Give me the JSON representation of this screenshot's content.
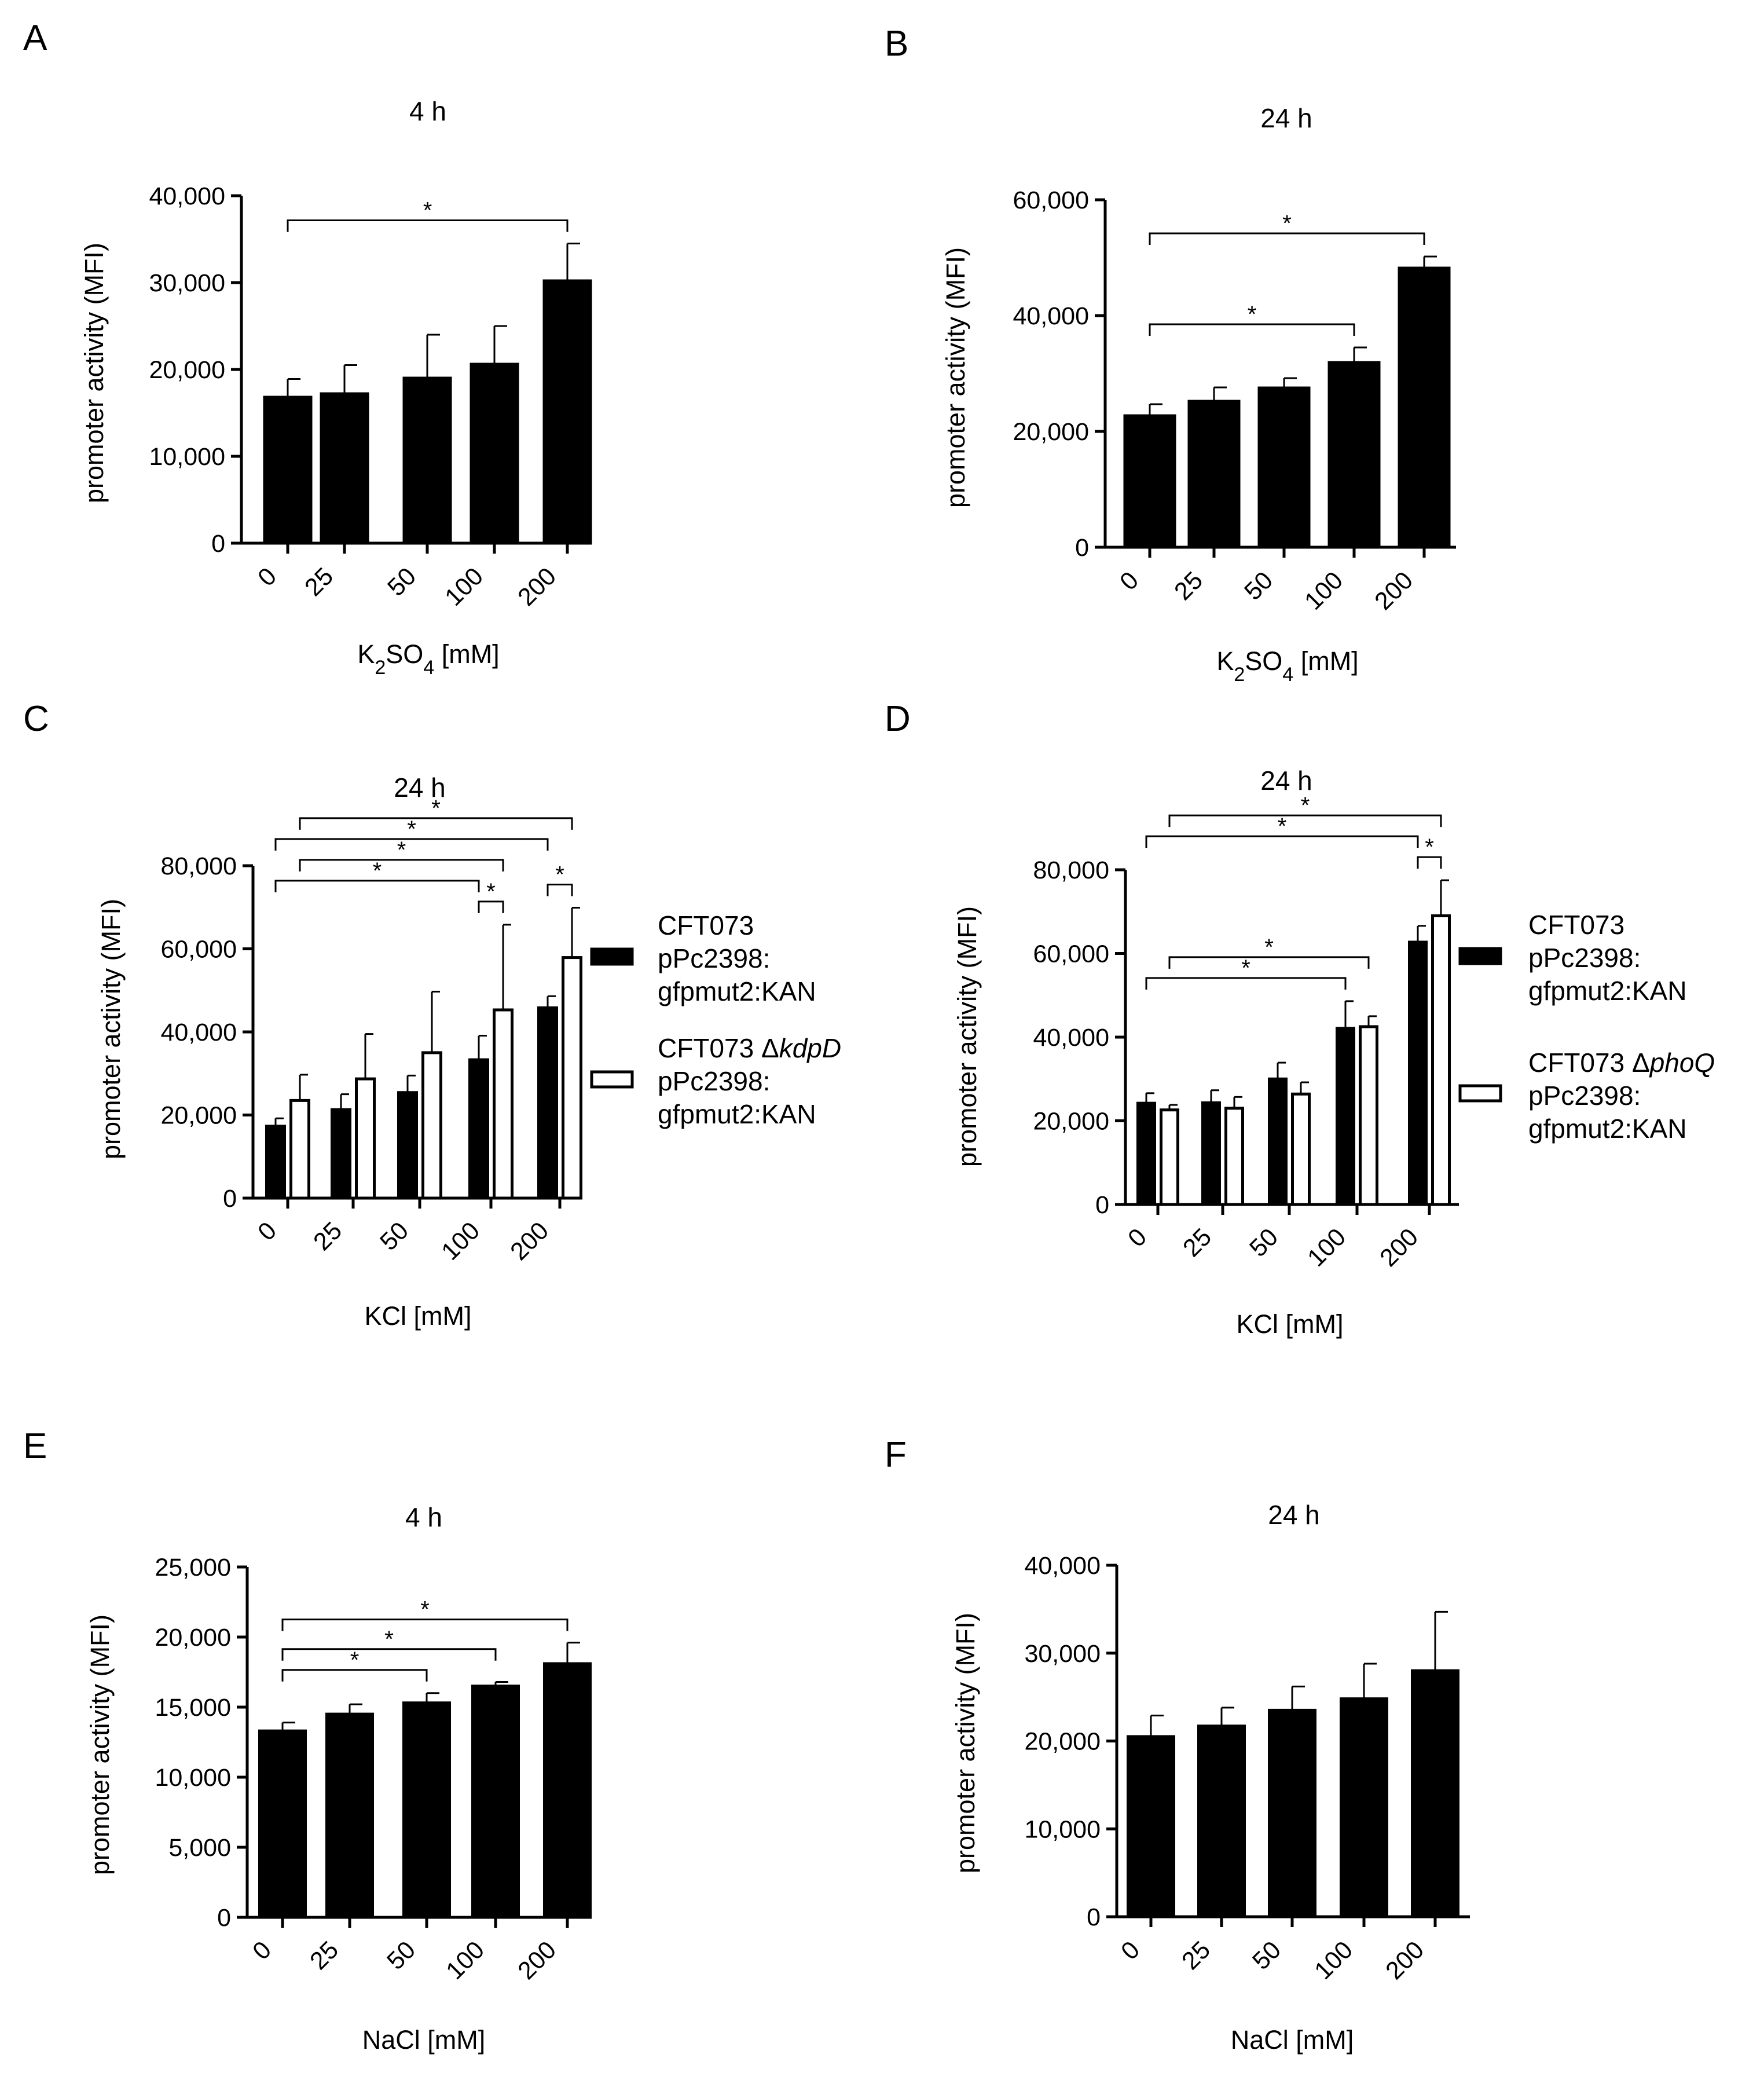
{
  "chart_data": [
    {
      "panel": "A",
      "type": "bar",
      "title": "4 h",
      "ylabel": "promoter activity (MFI)",
      "xlabel": "K2SO4 [mM]",
      "xlabel_parts": [
        {
          "t": "K"
        },
        {
          "t": "2",
          "sub": true
        },
        {
          "t": "SO"
        },
        {
          "t": "4",
          "sub": true
        },
        {
          "t": " [mM]"
        }
      ],
      "categories": [
        "0",
        "25",
        "50",
        "100",
        "200"
      ],
      "ylim": [
        0,
        40000
      ],
      "yticks": [
        0,
        10000,
        20000,
        30000,
        40000
      ],
      "ytick_labels": [
        "0",
        "10,000",
        "20,000",
        "30,000",
        "40,000"
      ],
      "series": [
        {
          "name": "",
          "fill": "#000000",
          "values": [
            16800,
            17200,
            19000,
            20600,
            30200
          ],
          "errors": [
            2100,
            3300,
            5000,
            4400,
            4300
          ]
        }
      ],
      "significance": [
        {
          "from": 0,
          "to": 4,
          "label": "*"
        }
      ]
    },
    {
      "panel": "B",
      "type": "bar",
      "title": "24 h",
      "ylabel": "promoter activity (MFI)",
      "xlabel": "K2SO4 [mM]",
      "xlabel_parts": [
        {
          "t": "K"
        },
        {
          "t": "2",
          "sub": true
        },
        {
          "t": "SO"
        },
        {
          "t": "4",
          "sub": true
        },
        {
          "t": " [mM]"
        }
      ],
      "categories": [
        "0",
        "25",
        "50",
        "100",
        "200"
      ],
      "ylim": [
        0,
        60000
      ],
      "yticks": [
        0,
        20000,
        40000,
        60000
      ],
      "ytick_labels": [
        "0",
        "20,000",
        "40,000",
        "60,000"
      ],
      "series": [
        {
          "name": "",
          "fill": "#000000",
          "values": [
            22700,
            25200,
            27500,
            31900,
            48200
          ],
          "errors": [
            2000,
            2400,
            1700,
            2600,
            2000
          ]
        }
      ],
      "significance": [
        {
          "from": 0,
          "to": 3,
          "label": "*"
        },
        {
          "from": 0,
          "to": 4,
          "label": "*"
        }
      ]
    },
    {
      "panel": "C",
      "type": "bar",
      "title": "24 h",
      "ylabel": "promoter activity (MFI)",
      "xlabel": "KCl [mM]",
      "xlabel_parts": [
        {
          "t": "KCl [mM]"
        }
      ],
      "categories": [
        "0",
        "25",
        "50",
        "100",
        "200"
      ],
      "ylim": [
        0,
        80000
      ],
      "yticks": [
        0,
        20000,
        40000,
        60000,
        80000
      ],
      "ytick_labels": [
        "0",
        "20,000",
        "40,000",
        "60,000",
        "80,000"
      ],
      "series": [
        {
          "name": "CFT073 pPc2398: gfpmut2:KAN",
          "fill": "#000000",
          "values": [
            17300,
            21300,
            25400,
            33300,
            45800
          ],
          "errors": [
            1900,
            3700,
            4100,
            5800,
            2800
          ]
        },
        {
          "name": "CFT073 ΔkdpD pPc2398: gfpmut2:KAN",
          "fill": "#ffffff",
          "values": [
            23500,
            28700,
            35000,
            45300,
            57900
          ],
          "errors": [
            6200,
            10800,
            14700,
            20500,
            12000
          ]
        }
      ],
      "legend": [
        {
          "lines": [
            [
              {
                "t": "CFT073"
              }
            ],
            [
              {
                "t": "pPc2398:"
              }
            ],
            [
              {
                "t": "gfpmut2:KAN"
              }
            ]
          ]
        },
        {
          "lines": [
            [
              {
                "t": "CFT073 Δ"
              },
              {
                "t": "kdpD",
                "i": true
              }
            ],
            [
              {
                "t": "pPc2398:"
              }
            ],
            [
              {
                "t": "gfpmut2:KAN"
              }
            ]
          ]
        }
      ],
      "significance": [
        {
          "from": [
            3,
            0
          ],
          "to": [
            3,
            1
          ],
          "label": "*"
        },
        {
          "from": [
            4,
            0
          ],
          "to": [
            4,
            1
          ],
          "label": "*"
        },
        {
          "from": [
            0,
            0
          ],
          "to": [
            3,
            0
          ],
          "label": "*"
        },
        {
          "from": [
            0,
            1
          ],
          "to": [
            3,
            1
          ],
          "label": "*"
        },
        {
          "from": [
            0,
            0
          ],
          "to": [
            4,
            0
          ],
          "label": "*"
        },
        {
          "from": [
            0,
            1
          ],
          "to": [
            4,
            1
          ],
          "label": "*"
        }
      ]
    },
    {
      "panel": "D",
      "type": "bar",
      "title": "24 h",
      "ylabel": "promoter activity (MFI)",
      "xlabel": "KCl [mM]",
      "xlabel_parts": [
        {
          "t": "KCl [mM]"
        }
      ],
      "categories": [
        "0",
        "25",
        "50",
        "100",
        "200"
      ],
      "ylim": [
        0,
        80000
      ],
      "yticks": [
        0,
        20000,
        40000,
        60000,
        80000
      ],
      "ytick_labels": [
        "0",
        "20,000",
        "40,000",
        "60,000",
        "80,000"
      ],
      "series": [
        {
          "name": "CFT073 pPc2398: gfpmut2:KAN",
          "fill": "#000000",
          "values": [
            24200,
            24300,
            30000,
            42100,
            62700
          ],
          "errors": [
            2400,
            3000,
            3900,
            6500,
            3900
          ]
        },
        {
          "name": "CFT073 ΔphoQ pPc2398: gfpmut2:KAN",
          "fill": "#ffffff",
          "values": [
            22600,
            23000,
            26400,
            42500,
            69000
          ],
          "errors": [
            1200,
            2700,
            2800,
            2500,
            8500
          ]
        }
      ],
      "legend": [
        {
          "lines": [
            [
              {
                "t": "CFT073"
              }
            ],
            [
              {
                "t": "pPc2398:"
              }
            ],
            [
              {
                "t": "gfpmut2:KAN"
              }
            ]
          ]
        },
        {
          "lines": [
            [
              {
                "t": "CFT073 Δ"
              },
              {
                "t": "phoQ",
                "i": true
              }
            ],
            [
              {
                "t": "pPc2398:"
              }
            ],
            [
              {
                "t": "gfpmut2:KAN"
              }
            ]
          ]
        }
      ],
      "significance": [
        {
          "from": [
            4,
            0
          ],
          "to": [
            4,
            1
          ],
          "label": "*"
        },
        {
          "from": [
            0,
            0
          ],
          "to": [
            3,
            0
          ],
          "label": "*"
        },
        {
          "from": [
            0,
            1
          ],
          "to": [
            3,
            1
          ],
          "label": "*"
        },
        {
          "from": [
            0,
            0
          ],
          "to": [
            4,
            0
          ],
          "label": "*"
        },
        {
          "from": [
            0,
            1
          ],
          "to": [
            4,
            1
          ],
          "label": "*"
        }
      ]
    },
    {
      "panel": "E",
      "type": "bar",
      "title": "4 h",
      "ylabel": "promoter activity (MFI)",
      "xlabel": "NaCl [mM]",
      "xlabel_parts": [
        {
          "t": "NaCl [mM]"
        }
      ],
      "categories": [
        "0",
        "25",
        "50",
        "100",
        "200"
      ],
      "ylim": [
        0,
        25000
      ],
      "yticks": [
        0,
        5000,
        10000,
        15000,
        20000,
        25000
      ],
      "ytick_labels": [
        "0",
        "5,000",
        "10,000",
        "15,000",
        "20,000",
        "25,000"
      ],
      "series": [
        {
          "name": "",
          "fill": "#000000",
          "values": [
            13300,
            14500,
            15300,
            16500,
            18100
          ],
          "errors": [
            600,
            700,
            700,
            300,
            1500
          ]
        }
      ],
      "significance": [
        {
          "from": 0,
          "to": 2,
          "label": "*"
        },
        {
          "from": 0,
          "to": 3,
          "label": "*"
        },
        {
          "from": 0,
          "to": 4,
          "label": "*"
        }
      ]
    },
    {
      "panel": "F",
      "type": "bar",
      "title": "24 h",
      "ylabel": "promoter activity (MFI)",
      "xlabel": "NaCl [mM]",
      "xlabel_parts": [
        {
          "t": "NaCl [mM]"
        }
      ],
      "categories": [
        "0",
        "25",
        "50",
        "100",
        "200"
      ],
      "ylim": [
        0,
        40000
      ],
      "yticks": [
        0,
        10000,
        20000,
        30000,
        40000
      ],
      "ytick_labels": [
        "0",
        "10,000",
        "20,000",
        "30,000",
        "40,000"
      ],
      "series": [
        {
          "name": "",
          "fill": "#000000",
          "values": [
            20500,
            21700,
            23500,
            24800,
            28000
          ],
          "errors": [
            2400,
            2100,
            2700,
            4000,
            6700
          ]
        }
      ],
      "significance": []
    }
  ]
}
